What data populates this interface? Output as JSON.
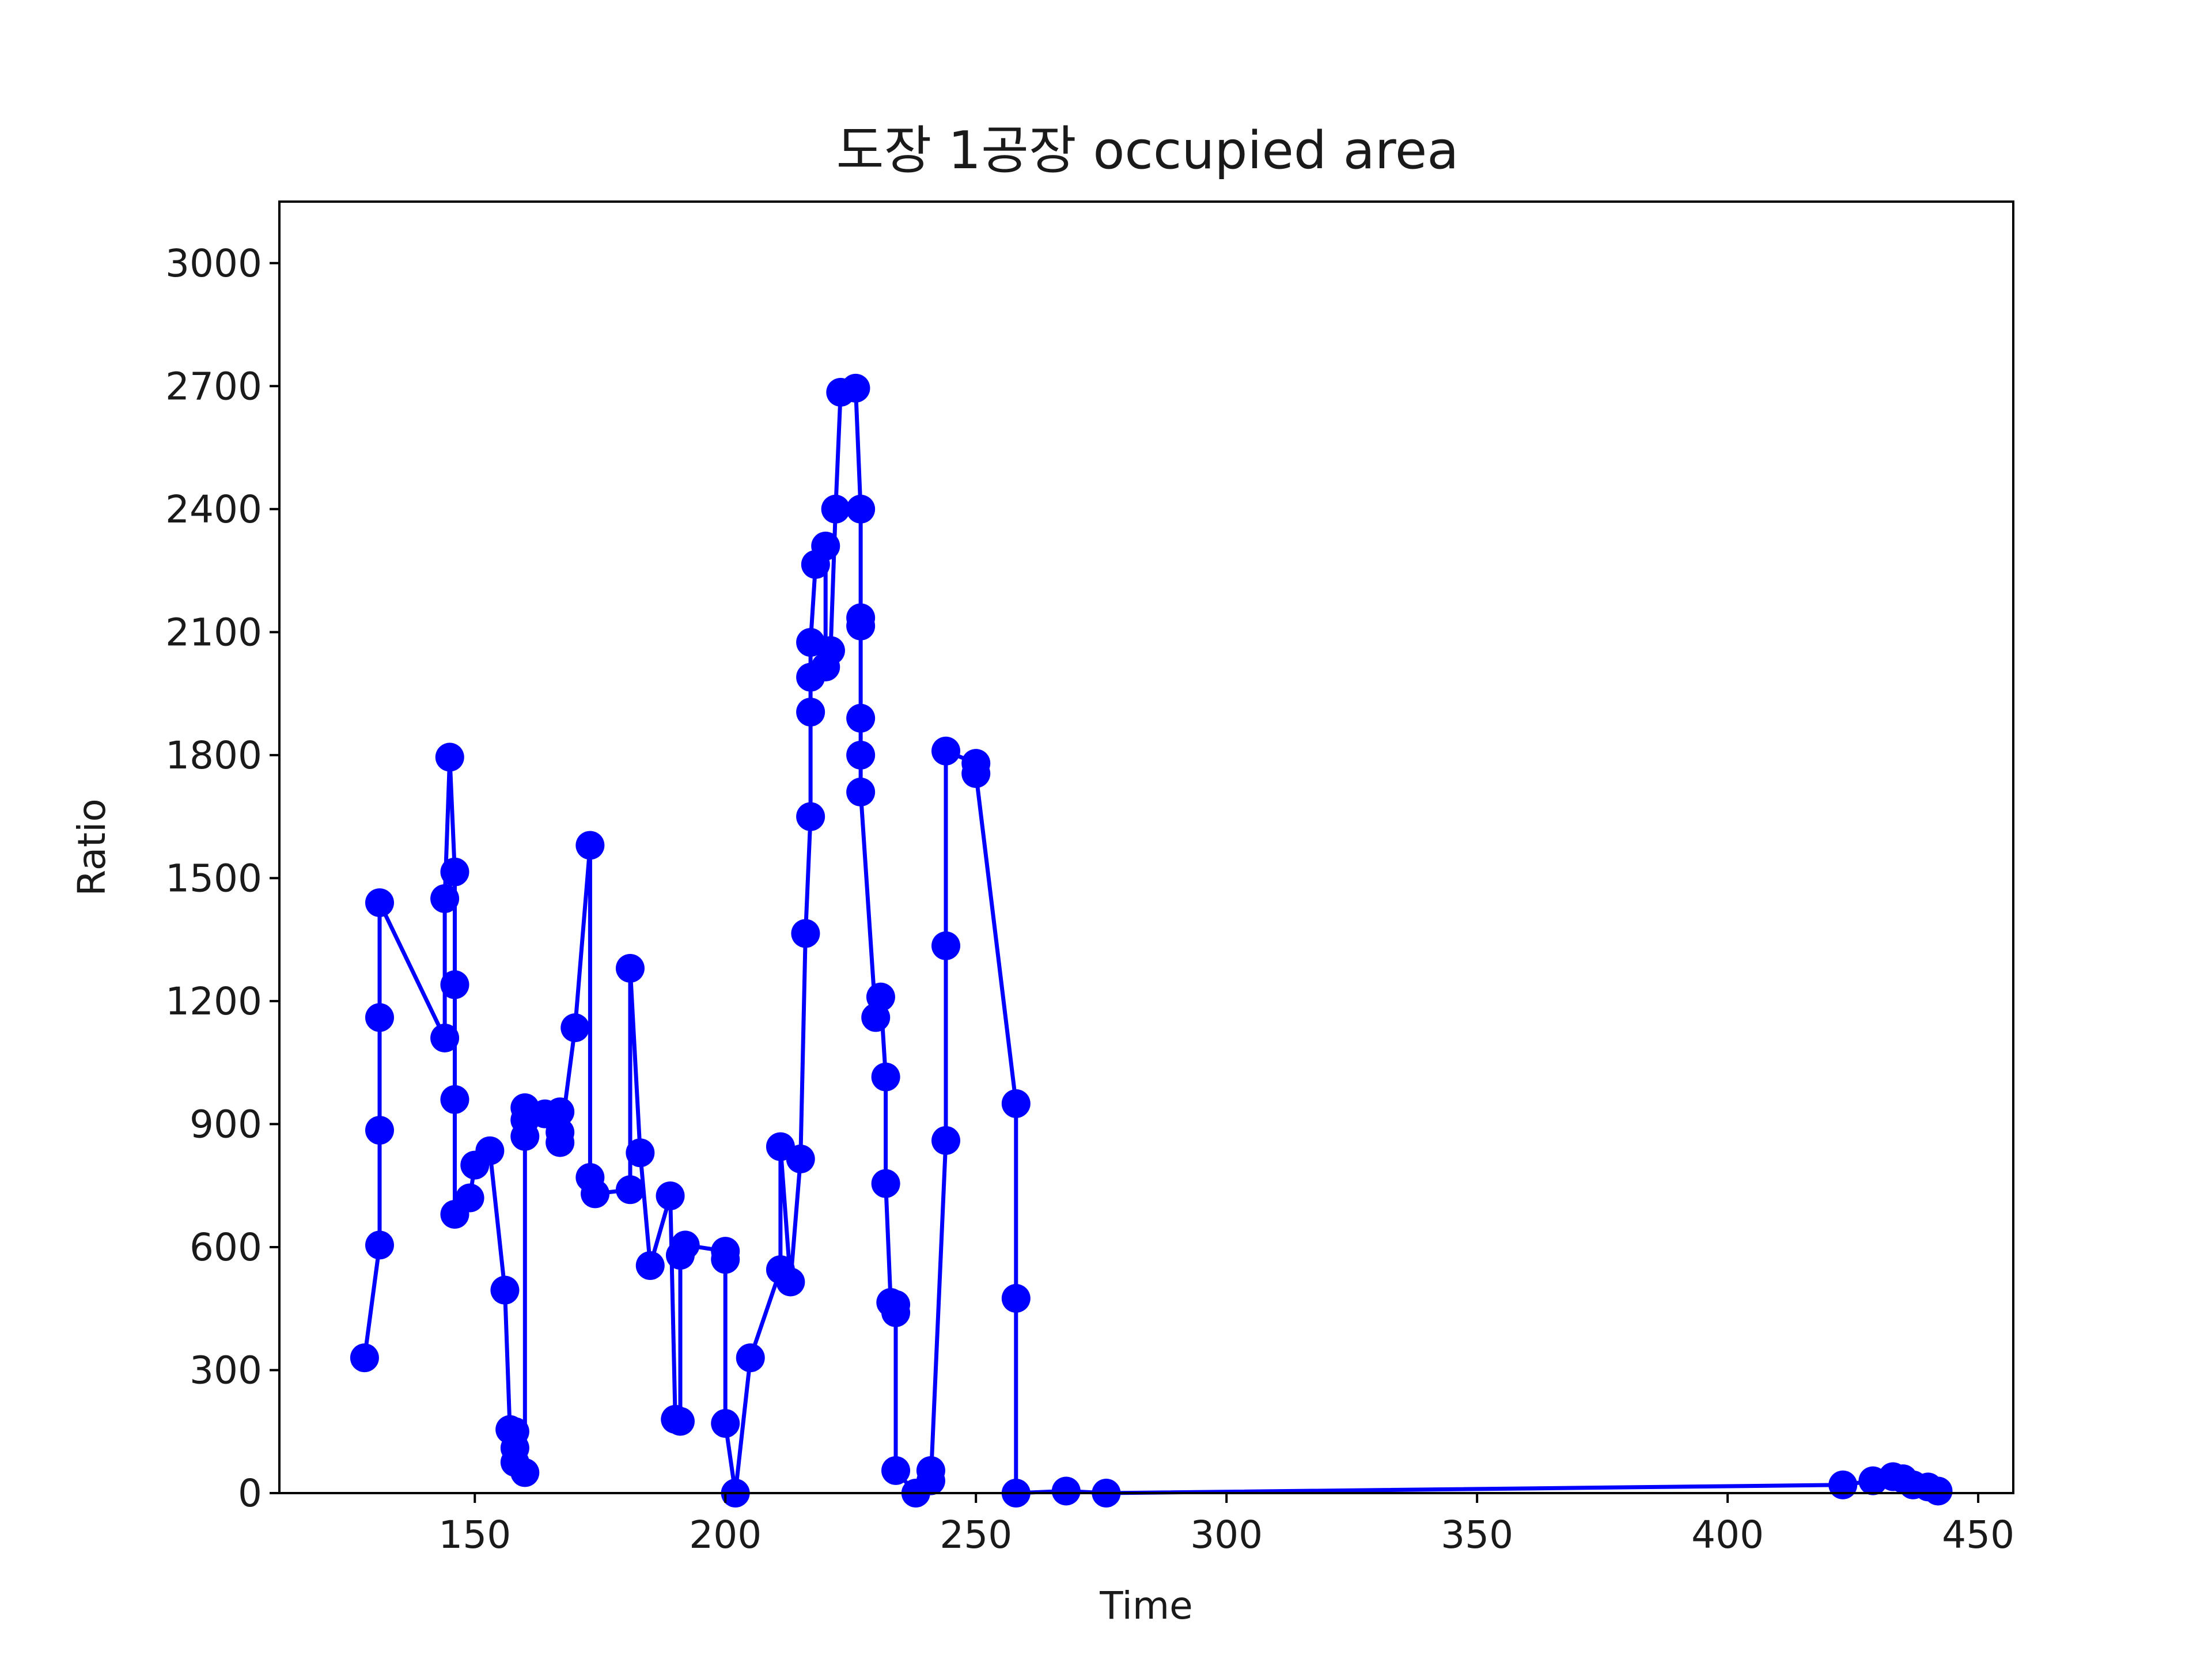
{
  "chart_data": {
    "type": "line",
    "title": "도장 1공장 occupied area",
    "xlabel": "Time",
    "ylabel": "Ratio",
    "xlim": [
      111,
      457
    ],
    "ylim": [
      0,
      3150
    ],
    "xticks": [
      150,
      200,
      250,
      300,
      350,
      400,
      450
    ],
    "yticks": [
      0,
      300,
      600,
      900,
      1200,
      1500,
      1800,
      2100,
      2400,
      2700,
      3000
    ],
    "grid": false,
    "legend": "none",
    "series": [
      {
        "color": "#0000ff",
        "marker": "circle",
        "points": [
          [
            128,
            330
          ],
          [
            131,
            605
          ],
          [
            131,
            885
          ],
          [
            131,
            1160
          ],
          [
            131,
            1440
          ],
          [
            144,
            1110
          ],
          [
            144,
            1450
          ],
          [
            145,
            1795
          ],
          [
            146,
            1515
          ],
          [
            146,
            1240
          ],
          [
            146,
            960
          ],
          [
            146,
            680
          ],
          [
            149,
            720
          ],
          [
            150,
            800
          ],
          [
            153,
            835
          ],
          [
            156,
            495
          ],
          [
            157,
            155
          ],
          [
            158,
            75
          ],
          [
            158,
            110
          ],
          [
            158,
            150
          ],
          [
            160,
            50
          ],
          [
            160,
            870
          ],
          [
            160,
            910
          ],
          [
            160,
            940
          ],
          [
            164,
            925
          ],
          [
            167,
            930
          ],
          [
            167,
            880
          ],
          [
            167,
            855
          ],
          [
            170,
            1135
          ],
          [
            173,
            1580
          ],
          [
            173,
            770
          ],
          [
            174,
            730
          ],
          [
            181,
            740
          ],
          [
            181,
            1280
          ],
          [
            183,
            830
          ],
          [
            185,
            555
          ],
          [
            189,
            725
          ],
          [
            190,
            180
          ],
          [
            191,
            175
          ],
          [
            191,
            580
          ],
          [
            192,
            605
          ],
          [
            200,
            590
          ],
          [
            200,
            570
          ],
          [
            200,
            170
          ],
          [
            202,
            0
          ],
          [
            205,
            330
          ],
          [
            211,
            545
          ],
          [
            211,
            845
          ],
          [
            213,
            515
          ],
          [
            215,
            815
          ],
          [
            216,
            1365
          ],
          [
            217,
            1650
          ],
          [
            217,
            1905
          ],
          [
            217,
            1990
          ],
          [
            217,
            2075
          ],
          [
            218,
            2265
          ],
          [
            220,
            2310
          ],
          [
            220,
            2015
          ],
          [
            221,
            2055
          ],
          [
            222,
            2400
          ],
          [
            223,
            2685
          ],
          [
            226,
            2695
          ],
          [
            227,
            2400
          ],
          [
            227,
            2135
          ],
          [
            227,
            2115
          ],
          [
            227,
            1890
          ],
          [
            227,
            1800
          ],
          [
            227,
            1710
          ],
          [
            230,
            1160
          ],
          [
            231,
            1210
          ],
          [
            232,
            1015
          ],
          [
            232,
            755
          ],
          [
            233,
            465
          ],
          [
            234,
            460
          ],
          [
            234,
            440
          ],
          [
            234,
            55
          ],
          [
            238,
            0
          ],
          [
            241,
            55
          ],
          [
            241,
            30
          ],
          [
            244,
            860
          ],
          [
            244,
            1335
          ],
          [
            244,
            1810
          ],
          [
            250,
            1780
          ],
          [
            250,
            1755
          ],
          [
            258,
            950
          ],
          [
            258,
            475
          ],
          [
            258,
            0
          ],
          [
            268,
            5
          ],
          [
            276,
            0
          ],
          [
            423,
            20
          ],
          [
            429,
            30
          ],
          [
            433,
            40
          ],
          [
            435,
            35
          ],
          [
            437,
            20
          ],
          [
            440,
            15
          ],
          [
            442,
            5
          ]
        ]
      }
    ]
  }
}
